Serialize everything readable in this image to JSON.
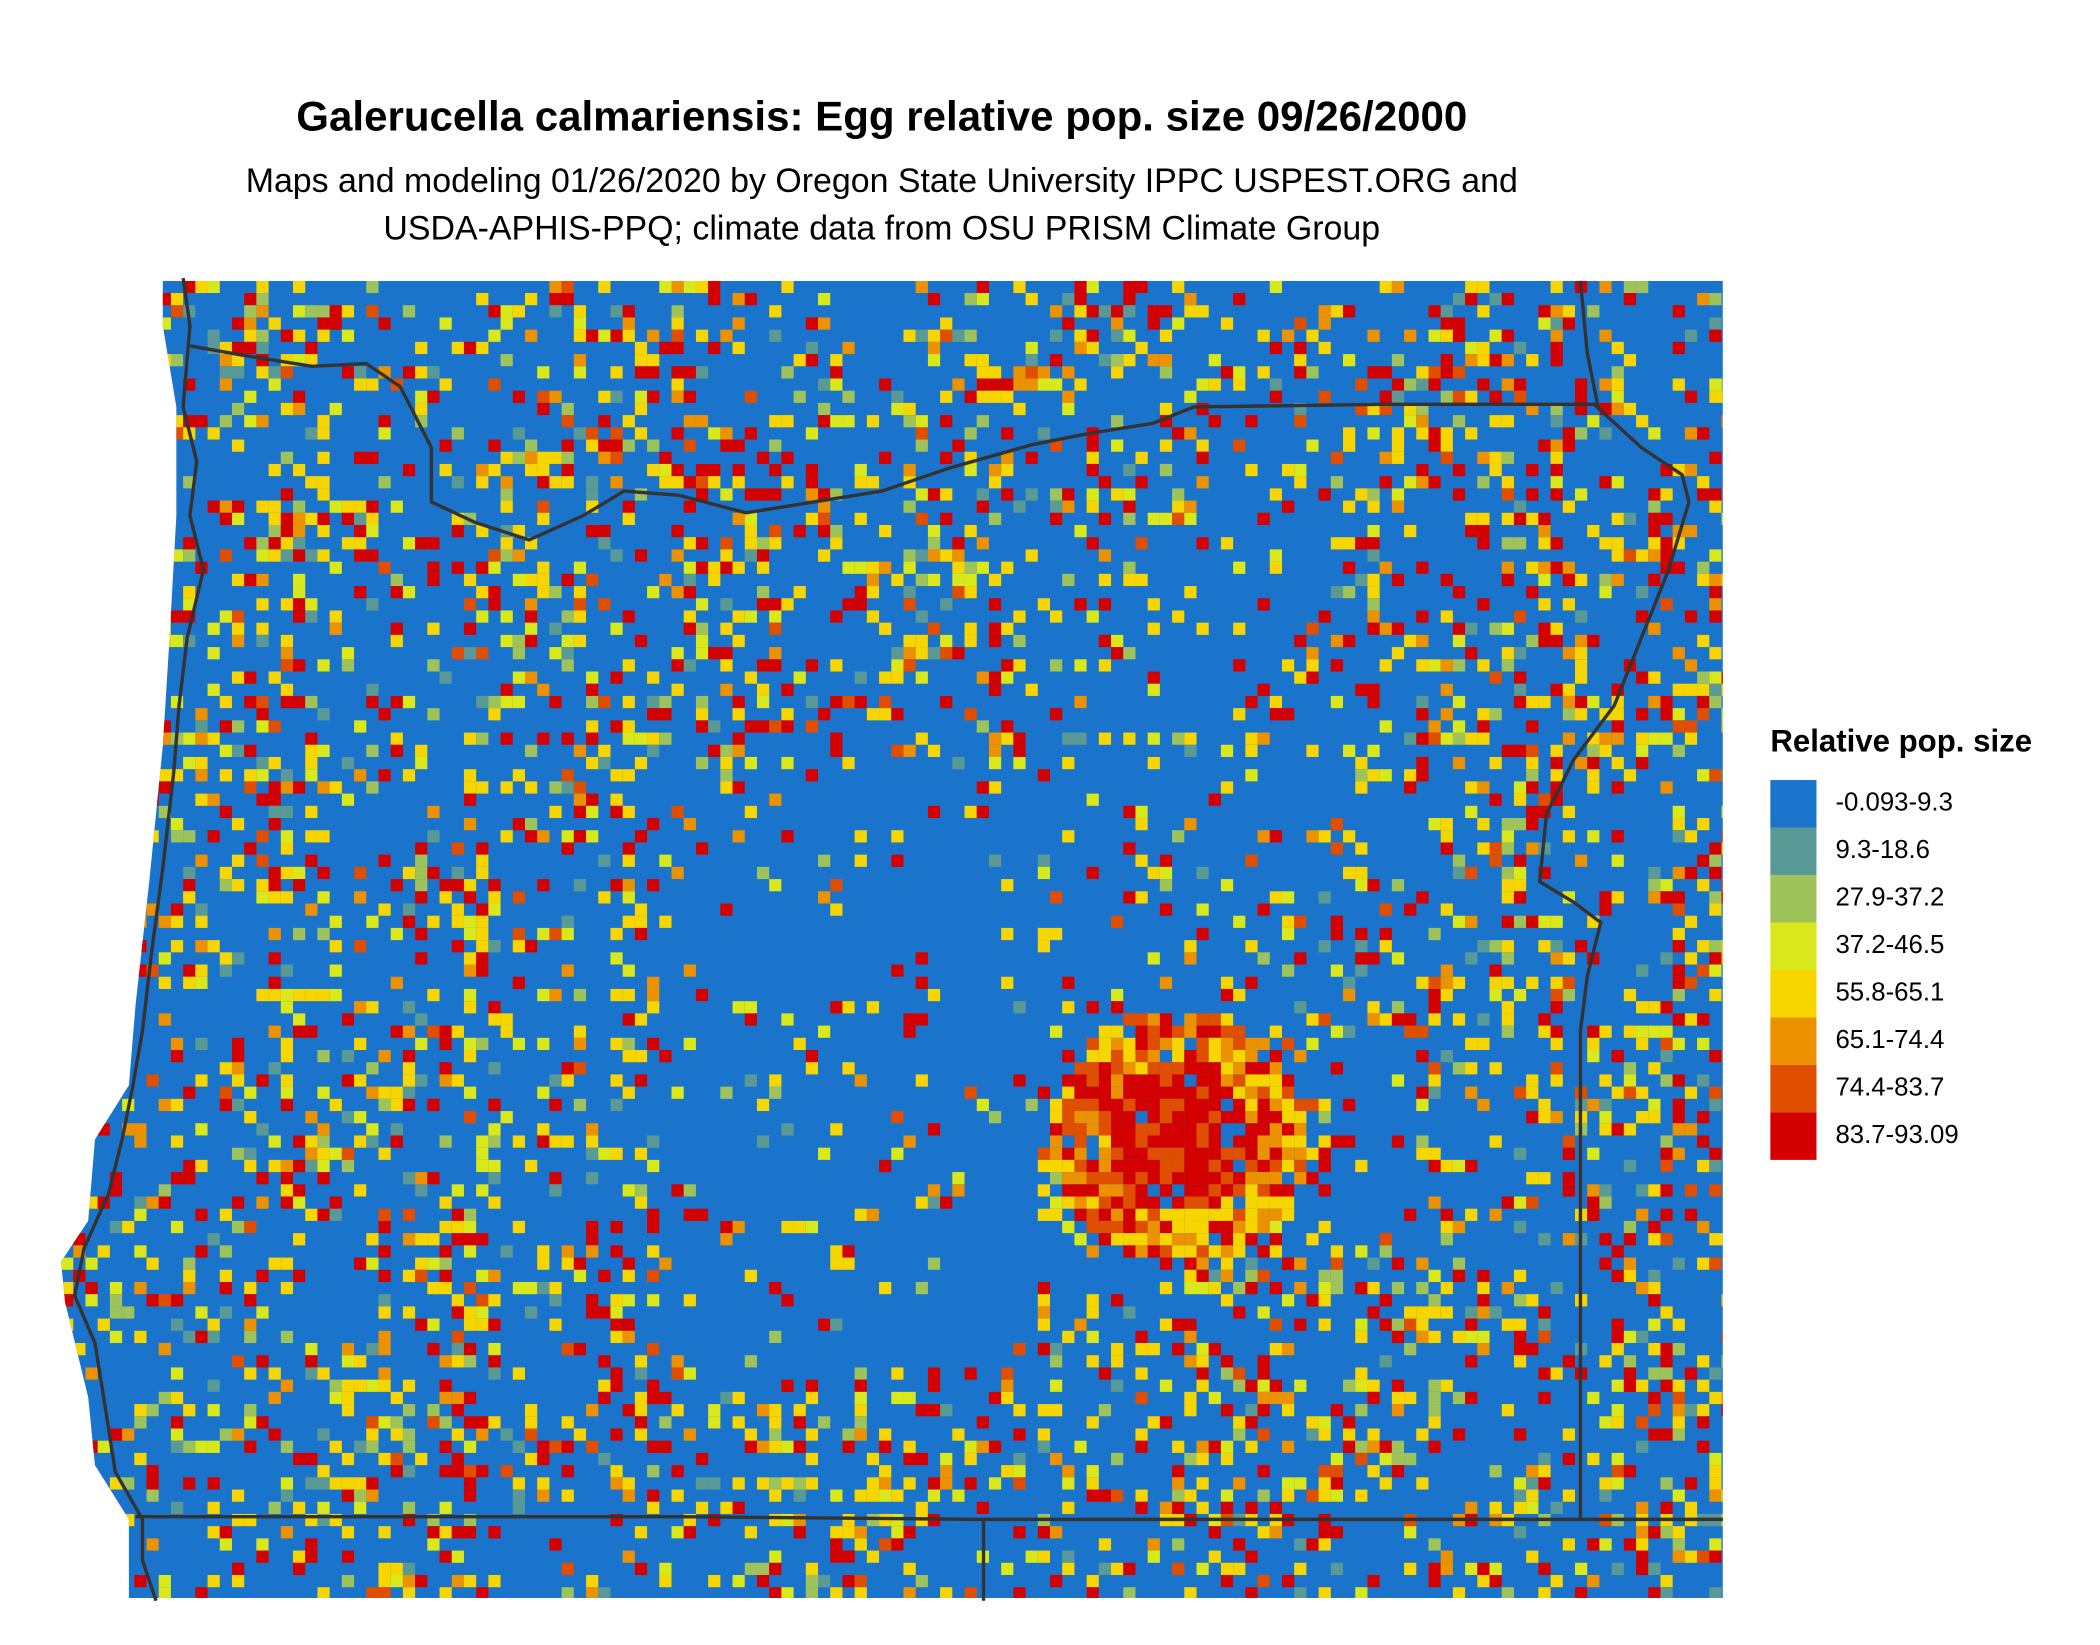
{
  "title": "Galerucella calmariensis: Egg relative pop. size 09/26/2000",
  "subtitle": [
    "Maps and modeling 01/26/2020 by Oregon State University IPPC USPEST.ORG and",
    "USDA-APHIS-PPQ; climate data from OSU PRISM Climate Group"
  ],
  "legend": {
    "title": "Relative pop. size",
    "entries": [
      {
        "label": "-0.093-9.3",
        "color": "#1b74cc"
      },
      {
        "label": "9.3-18.6",
        "color": "#5a9a96"
      },
      {
        "label": "27.9-37.2",
        "color": "#9ec35a"
      },
      {
        "label": "37.2-46.5",
        "color": "#d9e81a"
      },
      {
        "label": "55.8-65.1",
        "color": "#f7d600"
      },
      {
        "label": "65.1-74.4",
        "color": "#ec9200"
      },
      {
        "label": "74.4-83.7",
        "color": "#e04e00"
      },
      {
        "label": "83.7-93.09",
        "color": "#d40000"
      }
    ]
  }
}
